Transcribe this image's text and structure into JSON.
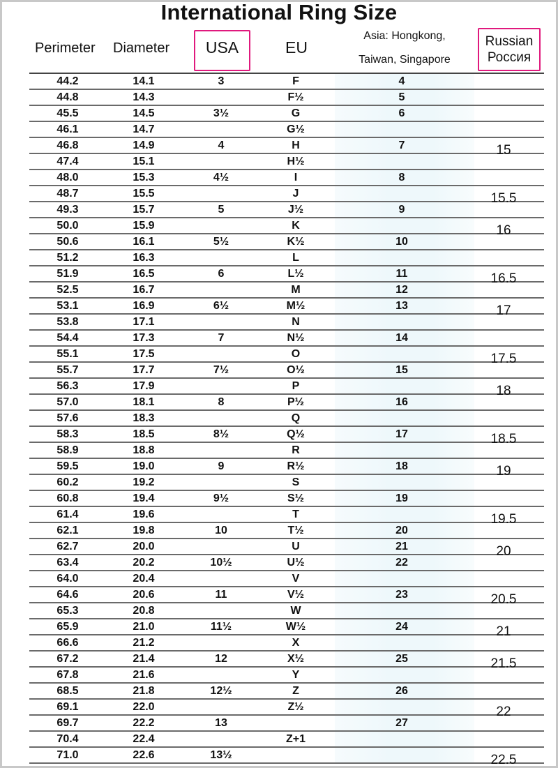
{
  "title": "International Ring Size",
  "headers": {
    "perimeter": "Perimeter",
    "diameter": "Diameter",
    "usa": "USA",
    "eu": "EU",
    "asia_line1": "Asia: Hongkong,",
    "asia_line2": "Taiwan,  Singapore",
    "russian_line1": "Russian",
    "russian_line2": "Россия"
  },
  "colors": {
    "highlight_box": "#e0197d",
    "asia_band": "#eef8fb"
  },
  "rows": [
    {
      "perimeter": "44.2",
      "diameter": "14.1",
      "usa": "3",
      "eu": "F",
      "asia": "4",
      "russian": ""
    },
    {
      "perimeter": "44.8",
      "diameter": "14.3",
      "usa": "",
      "eu": "F½",
      "asia": "5",
      "russian": ""
    },
    {
      "perimeter": "45.5",
      "diameter": "14.5",
      "usa": "3½",
      "eu": "G",
      "asia": "6",
      "russian": ""
    },
    {
      "perimeter": "46.1",
      "diameter": "14.7",
      "usa": "",
      "eu": "G½",
      "asia": "",
      "russian": ""
    },
    {
      "perimeter": "46.8",
      "diameter": "14.9",
      "usa": "4",
      "eu": "H",
      "asia": "7",
      "russian": "15"
    },
    {
      "perimeter": "47.4",
      "diameter": "15.1",
      "usa": "",
      "eu": "H½",
      "asia": "",
      "russian": ""
    },
    {
      "perimeter": "48.0",
      "diameter": "15.3",
      "usa": "4½",
      "eu": "I",
      "asia": "8",
      "russian": ""
    },
    {
      "perimeter": "48.7",
      "diameter": "15.5",
      "usa": "",
      "eu": "J",
      "asia": "",
      "russian": "15.5"
    },
    {
      "perimeter": "49.3",
      "diameter": "15.7",
      "usa": "5",
      "eu": "J½",
      "asia": "9",
      "russian": ""
    },
    {
      "perimeter": "50.0",
      "diameter": "15.9",
      "usa": "",
      "eu": "K",
      "asia": "",
      "russian": "16"
    },
    {
      "perimeter": "50.6",
      "diameter": "16.1",
      "usa": "5½",
      "eu": "K½",
      "asia": "10",
      "russian": ""
    },
    {
      "perimeter": "51.2",
      "diameter": "16.3",
      "usa": "",
      "eu": "L",
      "asia": "",
      "russian": ""
    },
    {
      "perimeter": "51.9",
      "diameter": "16.5",
      "usa": "6",
      "eu": "L½",
      "asia": "11",
      "russian": "16.5"
    },
    {
      "perimeter": "52.5",
      "diameter": "16.7",
      "usa": "",
      "eu": "M",
      "asia": "12",
      "russian": ""
    },
    {
      "perimeter": "53.1",
      "diameter": "16.9",
      "usa": "6½",
      "eu": "M½",
      "asia": "13",
      "russian": "17"
    },
    {
      "perimeter": "53.8",
      "diameter": "17.1",
      "usa": "",
      "eu": "N",
      "asia": "",
      "russian": ""
    },
    {
      "perimeter": "54.4",
      "diameter": "17.3",
      "usa": "7",
      "eu": "N½",
      "asia": "14",
      "russian": ""
    },
    {
      "perimeter": "55.1",
      "diameter": "17.5",
      "usa": "",
      "eu": "O",
      "asia": "",
      "russian": "17.5"
    },
    {
      "perimeter": "55.7",
      "diameter": "17.7",
      "usa": "7½",
      "eu": "O½",
      "asia": "15",
      "russian": ""
    },
    {
      "perimeter": "56.3",
      "diameter": "17.9",
      "usa": "",
      "eu": "P",
      "asia": "",
      "russian": "18"
    },
    {
      "perimeter": "57.0",
      "diameter": "18.1",
      "usa": "8",
      "eu": "P½",
      "asia": "16",
      "russian": ""
    },
    {
      "perimeter": "57.6",
      "diameter": "18.3",
      "usa": "",
      "eu": "Q",
      "asia": "",
      "russian": ""
    },
    {
      "perimeter": "58.3",
      "diameter": "18.5",
      "usa": "8½",
      "eu": "Q½",
      "asia": "17",
      "russian": "18.5"
    },
    {
      "perimeter": "58.9",
      "diameter": "18.8",
      "usa": "",
      "eu": "R",
      "asia": "",
      "russian": ""
    },
    {
      "perimeter": "59.5",
      "diameter": "19.0",
      "usa": "9",
      "eu": "R½",
      "asia": "18",
      "russian": "19"
    },
    {
      "perimeter": "60.2",
      "diameter": "19.2",
      "usa": "",
      "eu": "S",
      "asia": "",
      "russian": ""
    },
    {
      "perimeter": "60.8",
      "diameter": "19.4",
      "usa": "9½",
      "eu": "S½",
      "asia": "19",
      "russian": ""
    },
    {
      "perimeter": "61.4",
      "diameter": "19.6",
      "usa": "",
      "eu": "T",
      "asia": "",
      "russian": "19.5"
    },
    {
      "perimeter": "62.1",
      "diameter": "19.8",
      "usa": "10",
      "eu": "T½",
      "asia": "20",
      "russian": ""
    },
    {
      "perimeter": "62.7",
      "diameter": "20.0",
      "usa": "",
      "eu": "U",
      "asia": "21",
      "russian": "20"
    },
    {
      "perimeter": "63.4",
      "diameter": "20.2",
      "usa": "10½",
      "eu": "U½",
      "asia": "22",
      "russian": ""
    },
    {
      "perimeter": "64.0",
      "diameter": "20.4",
      "usa": "",
      "eu": "V",
      "asia": "",
      "russian": ""
    },
    {
      "perimeter": "64.6",
      "diameter": "20.6",
      "usa": "11",
      "eu": "V½",
      "asia": "23",
      "russian": "20.5"
    },
    {
      "perimeter": "65.3",
      "diameter": "20.8",
      "usa": "",
      "eu": "W",
      "asia": "",
      "russian": ""
    },
    {
      "perimeter": "65.9",
      "diameter": "21.0",
      "usa": "11½",
      "eu": "W½",
      "asia": "24",
      "russian": "21"
    },
    {
      "perimeter": "66.6",
      "diameter": "21.2",
      "usa": "",
      "eu": "X",
      "asia": "",
      "russian": ""
    },
    {
      "perimeter": "67.2",
      "diameter": "21.4",
      "usa": "12",
      "eu": "X½",
      "asia": "25",
      "russian": "21.5"
    },
    {
      "perimeter": "67.8",
      "diameter": "21.6",
      "usa": "",
      "eu": "Y",
      "asia": "",
      "russian": ""
    },
    {
      "perimeter": "68.5",
      "diameter": "21.8",
      "usa": "12½",
      "eu": "Z",
      "asia": "26",
      "russian": ""
    },
    {
      "perimeter": "69.1",
      "diameter": "22.0",
      "usa": "",
      "eu": "Z½",
      "asia": "",
      "russian": "22"
    },
    {
      "perimeter": "69.7",
      "diameter": "22.2",
      "usa": "13",
      "eu": "",
      "asia": "27",
      "russian": ""
    },
    {
      "perimeter": "70.4",
      "diameter": "22.4",
      "usa": "",
      "eu": "Z+1",
      "asia": "",
      "russian": ""
    },
    {
      "perimeter": "71.0",
      "diameter": "22.6",
      "usa": "13½",
      "eu": "",
      "asia": "",
      "russian": "22.5"
    }
  ]
}
